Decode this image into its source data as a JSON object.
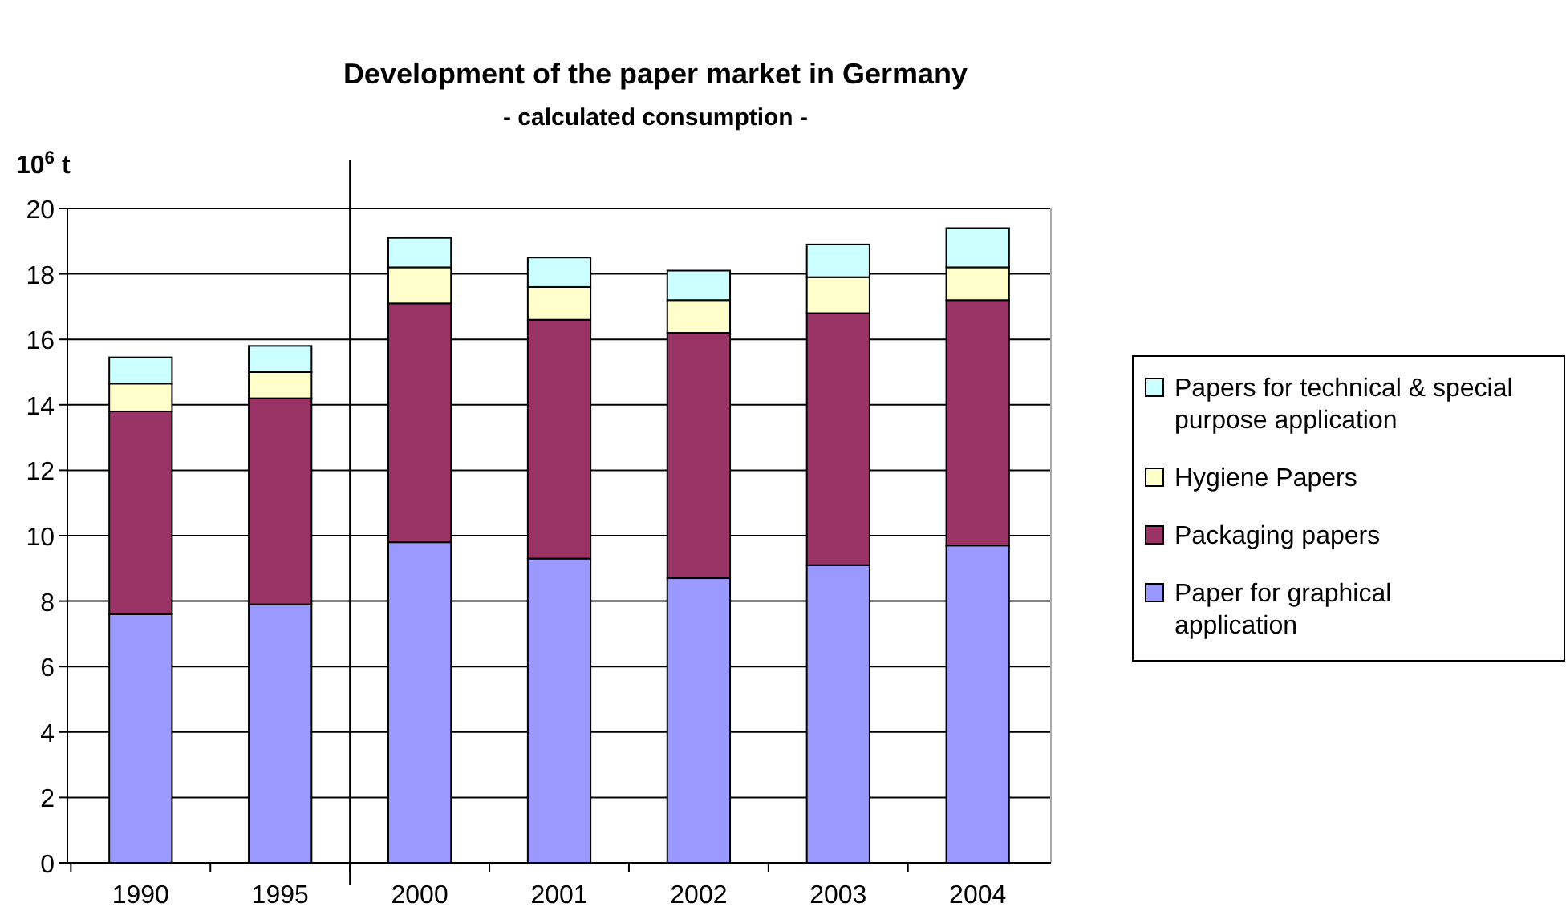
{
  "chart_data": {
    "type": "bar",
    "title": "Development of the paper market in Germany",
    "subtitle": "- calculated consumption -",
    "ylabel": "10$^{6}$ t",
    "categories": [
      "1990",
      "1995",
      "2000",
      "2001",
      "2002",
      "2003",
      "2004"
    ],
    "stacked": true,
    "series": [
      {
        "name": "Paper for graphical application",
        "color": "#9999ff",
        "values": [
          7.6,
          7.9,
          9.8,
          9.3,
          8.7,
          9.1,
          9.7
        ]
      },
      {
        "name": "Packaging papers",
        "color": "#993366",
        "values": [
          6.2,
          6.3,
          7.3,
          7.3,
          7.5,
          7.7,
          7.5
        ]
      },
      {
        "name": "Hygiene Papers",
        "color": "#ffffcc",
        "values": [
          0.85,
          0.8,
          1.1,
          1.0,
          1.0,
          1.1,
          1.0
        ]
      },
      {
        "name": "Papers for technical & special purpose application",
        "color": "#ccffff",
        "values": [
          0.8,
          0.8,
          0.9,
          0.9,
          0.9,
          1.0,
          1.2
        ]
      }
    ],
    "ylim": [
      0,
      20
    ],
    "yticks": [
      0,
      2,
      4,
      6,
      8,
      10,
      12,
      14,
      16,
      18,
      20
    ],
    "grid": "y",
    "legend": "right"
  }
}
